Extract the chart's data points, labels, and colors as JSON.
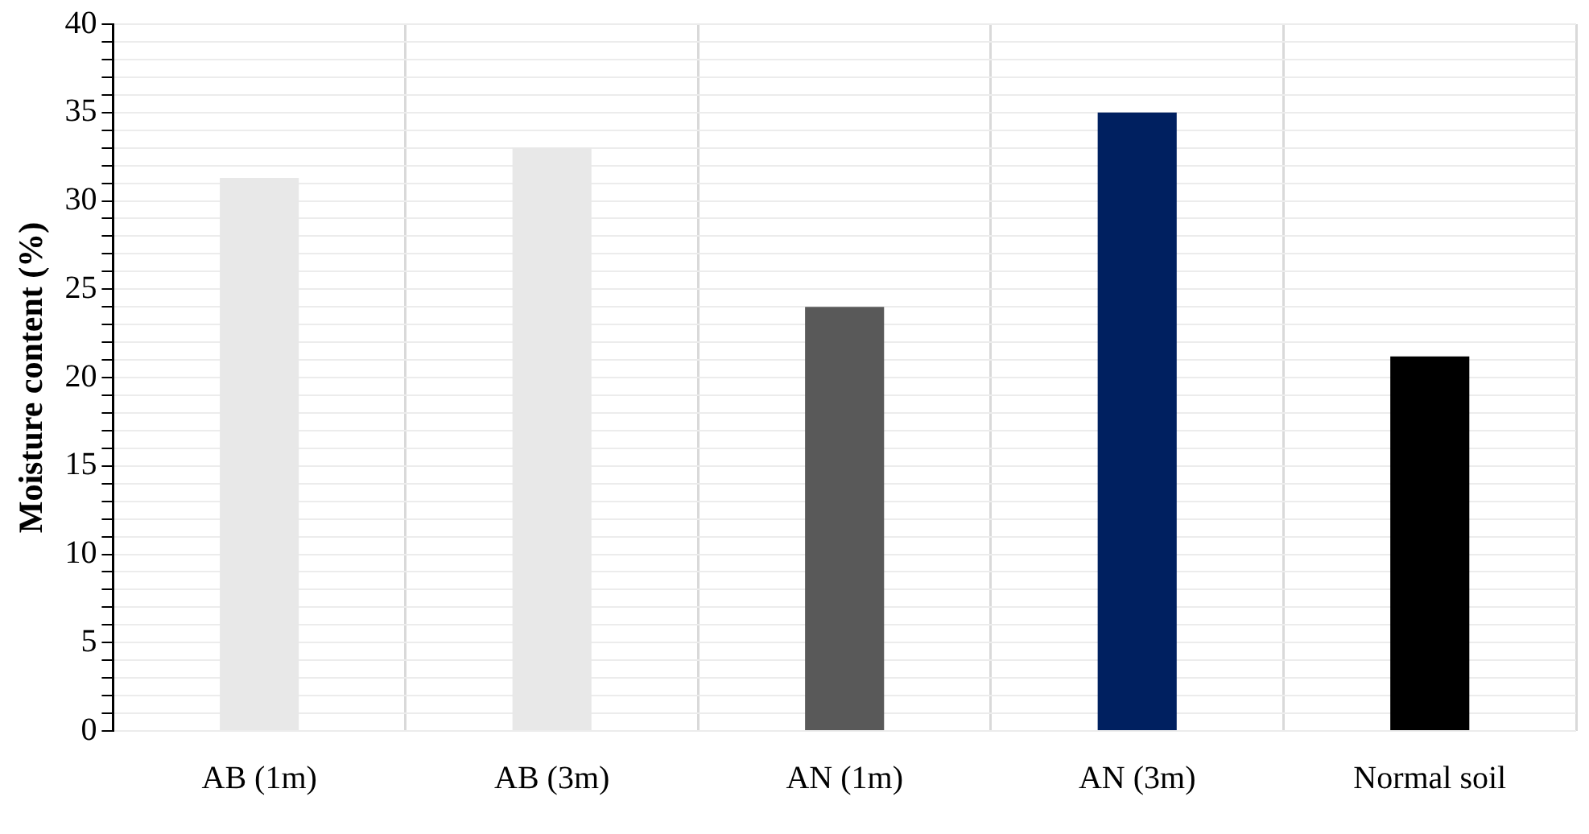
{
  "chart_data": {
    "type": "bar",
    "ylabel": "Moisture content (%)",
    "categories": [
      "AB (1m)",
      "AB (3m)",
      "AN (1m)",
      "AN (3m)",
      "Normal soil"
    ],
    "values": [
      31.3,
      33,
      24,
      35,
      21.2
    ],
    "colors": [
      "#e8e8e8",
      "#e8e8e8",
      "#595959",
      "#002060",
      "#000000"
    ],
    "ylim": [
      0,
      40
    ],
    "yticks": [
      0,
      {
        "value": 1,
        "label": null
      },
      {
        "value": 2,
        "label": null
      },
      {
        "value": 3,
        "label": null
      },
      {
        "value": 4,
        "label": null
      },
      5,
      {
        "value": 6,
        "label": null
      },
      {
        "value": 7,
        "label": null
      },
      {
        "value": 8,
        "label": null
      },
      {
        "value": 9,
        "label": null
      },
      10,
      {
        "value": 11,
        "label": null
      },
      {
        "value": 12,
        "label": null
      },
      {
        "value": 13,
        "label": null
      },
      {
        "value": 14,
        "label": null
      },
      15,
      {
        "value": 16,
        "label": null
      },
      {
        "value": 17,
        "label": null
      },
      {
        "value": 18,
        "label": null
      },
      {
        "value": 19,
        "label": null
      },
      20,
      {
        "value": 21,
        "label": null
      },
      {
        "value": 22,
        "label": null
      },
      {
        "value": 23,
        "label": null
      },
      {
        "value": 24,
        "label": null
      },
      25,
      {
        "value": 26,
        "label": null
      },
      {
        "value": 27,
        "label": null
      },
      {
        "value": 28,
        "label": null
      },
      {
        "value": 29,
        "label": null
      },
      30,
      {
        "value": 31,
        "label": null
      },
      {
        "value": 32,
        "label": null
      },
      {
        "value": 33,
        "label": null
      },
      {
        "value": 34,
        "label": null
      },
      35,
      {
        "value": 36,
        "label": null
      },
      {
        "value": 37,
        "label": null
      },
      {
        "value": 38,
        "label": null
      },
      {
        "value": 39,
        "label": null
      },
      40
    ],
    "grid": true,
    "legend": false
  }
}
